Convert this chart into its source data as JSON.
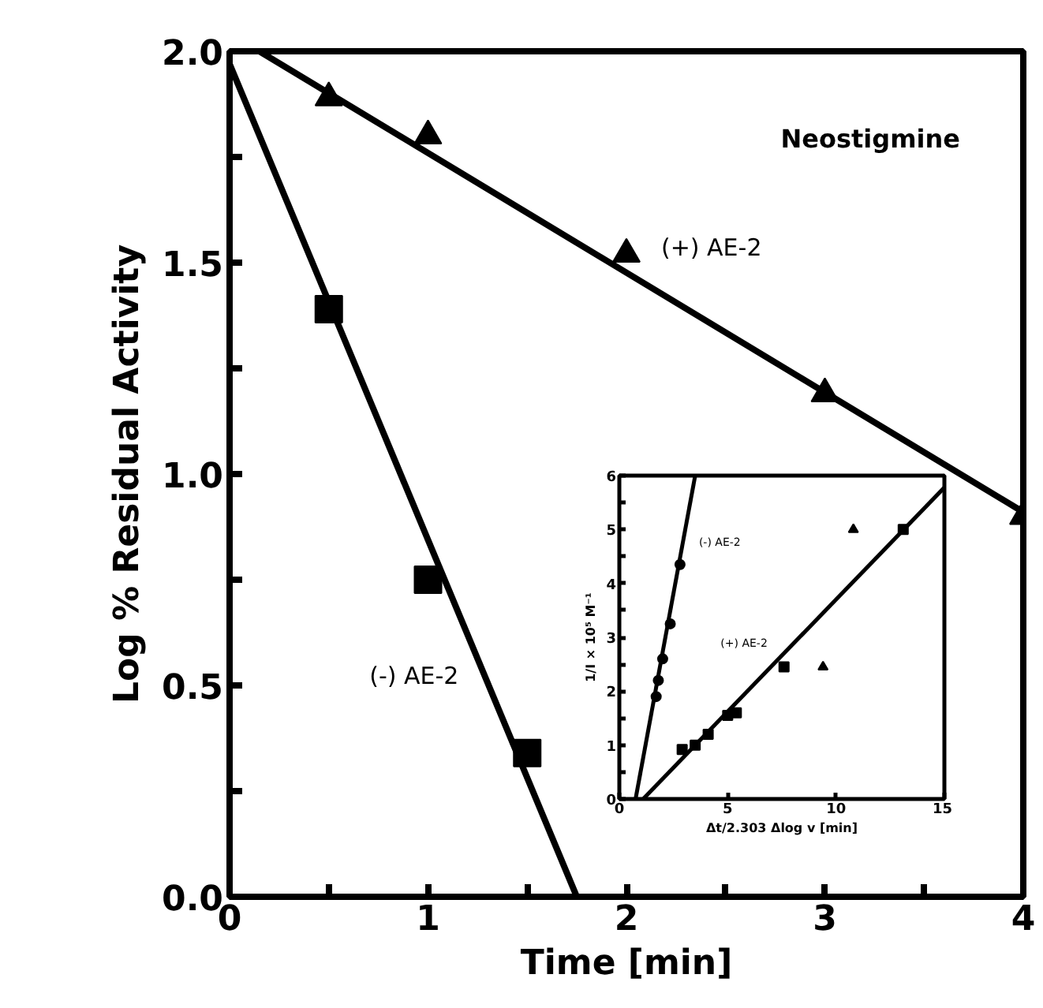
{
  "chart_data": [
    {
      "type": "scatter",
      "xlabel": "Time [min]",
      "ylabel": "Log % Residual Activity",
      "annotations": [
        "Neostigmine"
      ],
      "xlim": [
        0,
        4
      ],
      "ylim": [
        0,
        2
      ],
      "xticks": [
        0,
        {
          "value": 0.5,
          "label": null
        },
        1,
        {
          "value": 1.5,
          "label": null
        },
        2,
        {
          "value": 2.5,
          "label": null
        },
        3,
        {
          "value": 3.5,
          "label": null
        },
        4
      ],
      "yticks": [
        {
          "value": 0,
          "label": "0.0"
        },
        {
          "value": 0.25,
          "label": null
        },
        {
          "value": 0.5,
          "label": "0.5"
        },
        {
          "value": 0.75,
          "label": null
        },
        {
          "value": 1,
          "label": "1.0"
        },
        {
          "value": 1.25,
          "label": null
        },
        {
          "value": 1.5,
          "label": "1.5"
        },
        {
          "value": 1.75,
          "label": null
        },
        {
          "value": 2,
          "label": "2.0"
        }
      ],
      "grid": false,
      "series": [
        {
          "name": "(+) AE-2",
          "marker": "triangle",
          "color": "#000000",
          "x": [
            0.5,
            1,
            2,
            3,
            4
          ],
          "values": [
            1.89,
            1.8,
            1.52,
            1.19,
            0.9
          ]
        },
        {
          "type": "line",
          "marker": "none",
          "color": "#000000",
          "x": [
            0.15,
            4
          ],
          "values": [
            2.0,
            0.91
          ]
        },
        {
          "name": "(-) AE-2",
          "marker": "square",
          "color": "#000000",
          "x": [
            0.5,
            1,
            1.5
          ],
          "values": [
            1.39,
            0.75,
            0.34
          ]
        },
        {
          "type": "line",
          "marker": "none",
          "color": "#000000",
          "x": [
            0,
            1.75
          ],
          "values": [
            1.97,
            0
          ]
        }
      ]
    },
    {
      "type": "scatter",
      "xlabel": "Δt/2.303 Δlog v [min]",
      "ylabel": "1/I × 10⁵ M⁻¹",
      "xlim": [
        0,
        15
      ],
      "ylim": [
        0,
        6
      ],
      "xticks": [
        0,
        5,
        10,
        15
      ],
      "yticks": [
        0,
        {
          "value": 0.5,
          "label": null
        },
        1,
        {
          "value": 1.5,
          "label": null
        },
        2,
        {
          "value": 2.5,
          "label": null
        },
        3,
        {
          "value": 3.5,
          "label": null
        },
        4,
        {
          "value": 4.5,
          "label": null
        },
        5,
        {
          "value": 5.5,
          "label": null
        },
        6
      ],
      "grid": false,
      "series": [
        {
          "name": "(-) AE-2",
          "marker": "circle",
          "color": "#000000",
          "x": [
            1.7,
            1.8,
            2.0,
            2.35,
            2.8
          ],
          "values": [
            1.9,
            2.2,
            2.6,
            3.25,
            4.35
          ]
        },
        {
          "type": "line",
          "marker": "none",
          "color": "#000000",
          "x": [
            0.75,
            3.5
          ],
          "values": [
            0,
            6
          ]
        },
        {
          "name": "(+) AE-2",
          "marker": "square",
          "color": "#000000",
          "x": [
            2.9,
            3.5,
            4.1,
            5.0,
            5.4,
            7.6,
            13.1
          ],
          "values": [
            0.92,
            1.0,
            1.2,
            1.55,
            1.6,
            2.45,
            5.0
          ]
        },
        {
          "marker": "triangle",
          "color": "#000000",
          "x": [
            9.4,
            10.8
          ],
          "values": [
            2.45,
            5.0
          ]
        },
        {
          "type": "line",
          "marker": "none",
          "color": "#000000",
          "x": [
            1.1,
            15
          ],
          "values": [
            0,
            5.78
          ]
        }
      ]
    }
  ]
}
